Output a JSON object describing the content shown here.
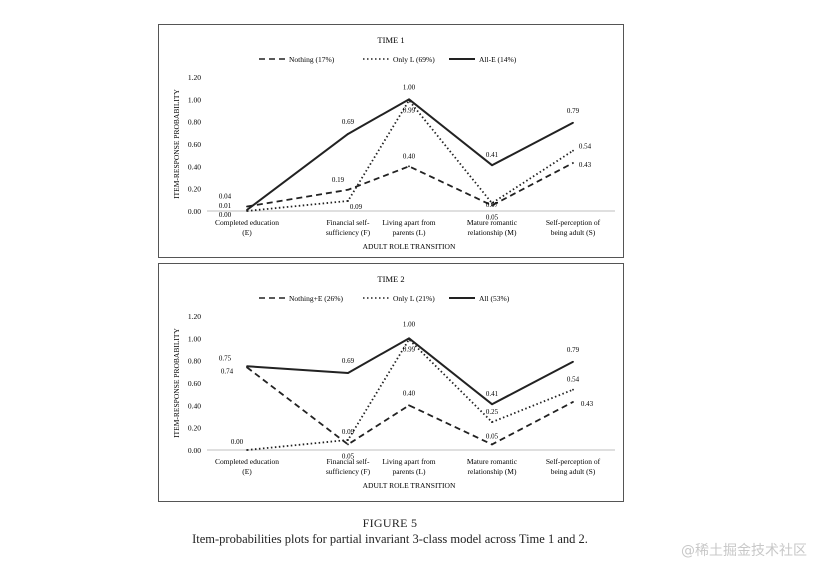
{
  "figure": {
    "label": "FIGURE 5",
    "caption": "Item-probabilities plots for partial invariant 3-class model across Time 1 and 2."
  },
  "watermark": "@稀土掘金技术社区",
  "chart_data": [
    {
      "type": "line",
      "title": "TIME 1",
      "xlabel": "ADULT ROLE TRANSITION",
      "ylabel": "ITEM-RESPONSE PROBABILITY",
      "ylim": [
        0,
        1.2
      ],
      "yticks": [
        "0.00",
        "0.20",
        "0.40",
        "0.60",
        "0.80",
        "1.00",
        "1.20"
      ],
      "categories": [
        [
          "Completed education",
          "(E)"
        ],
        [
          "Financial self-",
          "sufficiency (F)"
        ],
        [
          "Living apart from",
          "parents (L)"
        ],
        [
          "Mature romantic",
          "relationship (M)"
        ],
        [
          "Self-perception of",
          "being adult (S)"
        ]
      ],
      "legend_position": "top",
      "grid": false,
      "series": [
        {
          "name": "Nothing (17%)",
          "style": "dashed",
          "values": [
            0.04,
            0.19,
            0.4,
            0.05,
            0.43
          ],
          "labels": [
            "0.04",
            "0.19",
            "0.40",
            "0.05",
            "0.43"
          ]
        },
        {
          "name": "Only L (69%)",
          "style": "dotted",
          "values": [
            0.0,
            0.09,
            0.99,
            0.07,
            0.54
          ],
          "labels": [
            "0.00",
            "0.09",
            "0.99",
            "0.07",
            "0.54"
          ]
        },
        {
          "name": "All-E (14%)",
          "style": "solid",
          "values": [
            0.01,
            0.69,
            1.0,
            0.41,
            0.79
          ],
          "labels": [
            "0.01",
            "0.69",
            "1.00",
            "0.41",
            "0.79"
          ]
        }
      ]
    },
    {
      "type": "line",
      "title": "TIME 2",
      "xlabel": "ADULT ROLE TRANSITION",
      "ylabel": "ITEM-RESPONSE PROBABILITY",
      "ylim": [
        0,
        1.2
      ],
      "yticks": [
        "0.00",
        "0.20",
        "0.40",
        "0.60",
        "0.80",
        "1.00",
        "1.20"
      ],
      "categories": [
        [
          "Completed education",
          "(E)"
        ],
        [
          "Financial self-",
          "sufficiency (F)"
        ],
        [
          "Living apart from",
          "parents (L)"
        ],
        [
          "Mature romantic",
          "relationship (M)"
        ],
        [
          "Self-perception of",
          "being adult (S)"
        ]
      ],
      "legend_position": "top",
      "grid": false,
      "series": [
        {
          "name": "Nothing+E (26%)",
          "style": "dashed",
          "values": [
            0.74,
            0.05,
            0.4,
            0.05,
            0.43
          ],
          "labels": [
            "0.74",
            "0.05",
            "0.40",
            "0.05",
            "0.43"
          ]
        },
        {
          "name": "Only L (21%)",
          "style": "dotted",
          "values": [
            0.0,
            0.09,
            0.99,
            0.25,
            0.54
          ],
          "labels": [
            "0.00",
            "0.09",
            "0.99",
            "0.25",
            "0.54"
          ]
        },
        {
          "name": "All (53%)",
          "style": "solid",
          "values": [
            0.75,
            0.69,
            1.0,
            0.41,
            0.79
          ],
          "labels": [
            "0.75",
            "0.69",
            "1.00",
            "0.41",
            "0.79"
          ]
        }
      ]
    }
  ]
}
